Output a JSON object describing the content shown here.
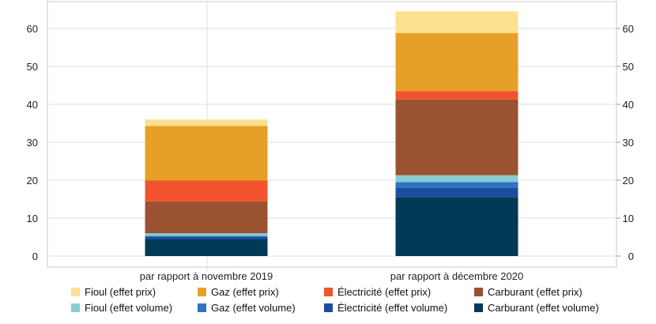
{
  "chart_data": {
    "type": "bar",
    "stacked": true,
    "categories": [
      "par rapport à novembre 2019",
      "par rapport à décembre 2020"
    ],
    "ylim": [
      0,
      65
    ],
    "yticks": [
      0,
      10,
      20,
      30,
      40,
      50,
      60
    ],
    "grid": true,
    "legend_position": "bottom",
    "series": [
      {
        "name": "Carburant (effet volume)",
        "color": "#003a57",
        "values": [
          4.5,
          15.5
        ]
      },
      {
        "name": "Électricité (effet volume)",
        "color": "#1c4ea0",
        "values": [
          0.5,
          2.5
        ]
      },
      {
        "name": "Gaz (effet volume)",
        "color": "#2f74c0",
        "values": [
          0.3,
          1.5
        ]
      },
      {
        "name": "Fioul (effet volume)",
        "color": "#86cdd4",
        "values": [
          0.7,
          1.8
        ]
      },
      {
        "name": "Carburant (effet prix)",
        "color": "#9a5230",
        "values": [
          8.4,
          20.0
        ]
      },
      {
        "name": "Électricité (effet prix)",
        "color": "#f1542c",
        "values": [
          5.5,
          2.2
        ]
      },
      {
        "name": "Gaz (effet prix)",
        "color": "#e6a028",
        "values": [
          14.4,
          15.3
        ]
      },
      {
        "name": "Fioul (effet prix)",
        "color": "#fbe08f",
        "values": [
          1.7,
          5.7
        ]
      }
    ]
  },
  "legend_order": [
    7,
    6,
    5,
    4,
    3,
    2,
    1,
    0
  ]
}
